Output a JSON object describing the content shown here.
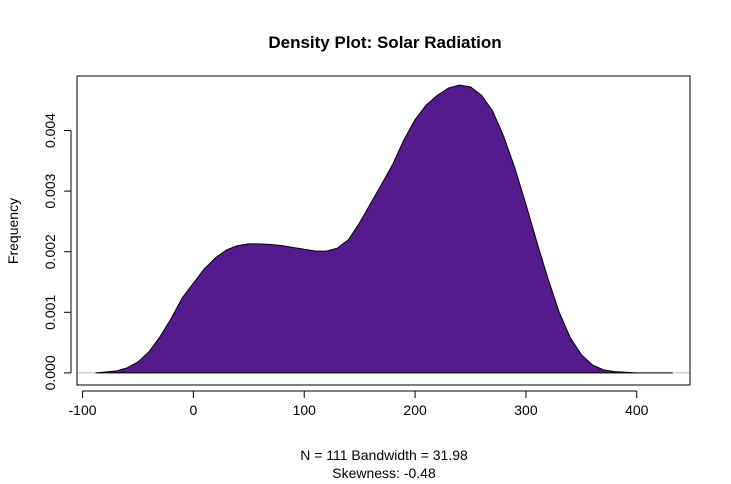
{
  "chart_data": {
    "type": "area",
    "title": "Density Plot: Solar Radiation",
    "xlabel_line1": "N = 111   Bandwidth = 31.98",
    "xlabel_line2": "Skewness: -0.48",
    "ylabel": "Frequency",
    "xlim": [
      -105,
      448
    ],
    "ylim": [
      -0.0002,
      0.0049
    ],
    "x_ticks": [
      -100,
      0,
      100,
      200,
      300,
      400
    ],
    "x_tick_labels": [
      "-100",
      "0",
      "100",
      "200",
      "300",
      "400"
    ],
    "y_ticks": [
      0.0,
      0.001,
      0.002,
      0.003,
      0.004
    ],
    "y_tick_labels": [
      "0.000",
      "0.001",
      "0.002",
      "0.003",
      "0.004"
    ],
    "fill_color": "#551A8B",
    "baseline_color": "#bebebe",
    "series": [
      {
        "x": [
          -88,
          -70,
          -60,
          -50,
          -40,
          -30,
          -20,
          -10,
          0,
          10,
          20,
          30,
          40,
          50,
          60,
          70,
          80,
          90,
          100,
          110,
          120,
          130,
          140,
          150,
          160,
          170,
          180,
          190,
          200,
          210,
          220,
          230,
          240,
          250,
          260,
          270,
          280,
          290,
          300,
          310,
          320,
          330,
          340,
          350,
          360,
          370,
          380,
          390,
          400,
          410,
          420,
          432
        ],
        "y": [
          0.0,
          3e-05,
          8e-05,
          0.00018,
          0.00035,
          0.0006,
          0.0009,
          0.00124,
          0.00148,
          0.00172,
          0.0019,
          0.00203,
          0.0021,
          0.00213,
          0.00213,
          0.00212,
          0.0021,
          0.00207,
          0.00204,
          0.00201,
          0.00201,
          0.00206,
          0.0022,
          0.00248,
          0.0028,
          0.00312,
          0.00345,
          0.00385,
          0.00418,
          0.00442,
          0.00458,
          0.0047,
          0.00475,
          0.00472,
          0.00458,
          0.00432,
          0.0039,
          0.00338,
          0.00278,
          0.00215,
          0.00155,
          0.001,
          0.00058,
          0.0003,
          0.00013,
          5e-05,
          2e-05,
          1e-05,
          0.0,
          0.0,
          0.0,
          0.0
        ]
      }
    ]
  }
}
